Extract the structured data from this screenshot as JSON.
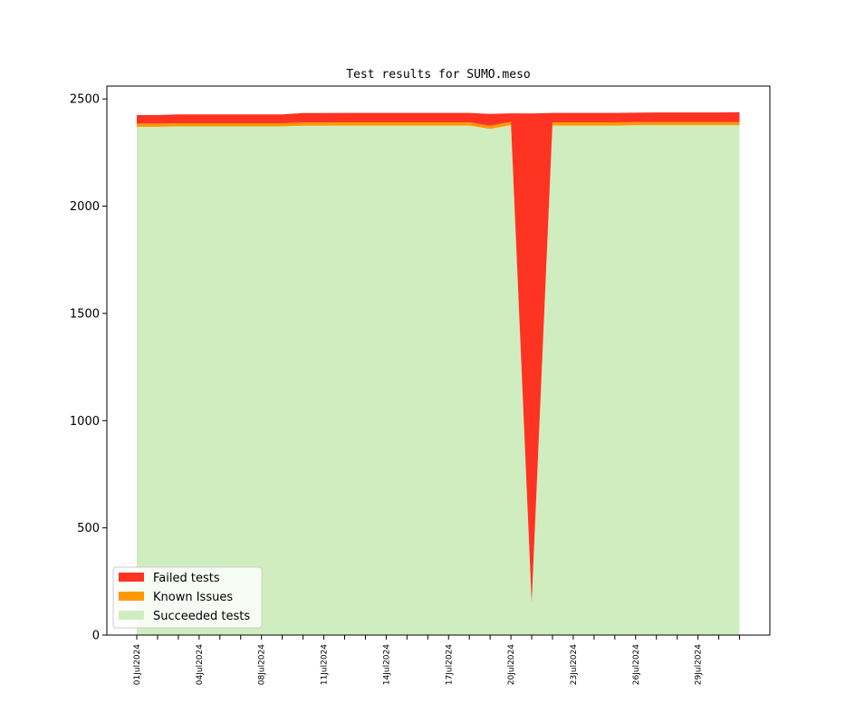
{
  "chart_data": {
    "type": "area",
    "stacked": true,
    "title": "Test results for SUMO.meso",
    "xlabel": "",
    "ylabel": "",
    "ylim": [
      0,
      2560
    ],
    "yticks": [
      0,
      500,
      1000,
      1500,
      2000,
      2500
    ],
    "xtick_labels": [
      "01Jul2024",
      "04Jul2024",
      "08Jul2024",
      "11Jul2024",
      "14Jul2024",
      "17Jul2024",
      "20Jul2024",
      "23Jul2024",
      "26Jul2024",
      "29Jul2024"
    ],
    "x": [
      "01Jul2024",
      "02Jul2024",
      "03Jul2024",
      "04Jul2024",
      "05Jul2024",
      "06Jul2024",
      "07Jul2024",
      "08Jul2024",
      "09Jul2024",
      "10Jul2024",
      "11Jul2024",
      "12Jul2024",
      "13Jul2024",
      "14Jul2024",
      "15Jul2024",
      "16Jul2024",
      "17Jul2024",
      "18Jul2024",
      "19Jul2024",
      "20Jul2024",
      "21Jul2024",
      "22Jul2024",
      "23Jul2024",
      "24Jul2024",
      "25Jul2024",
      "26Jul2024",
      "27Jul2024",
      "28Jul2024",
      "29Jul2024",
      "30Jul2024"
    ],
    "series": [
      {
        "name": "Succeeded tests",
        "color": "#d0edc0",
        "values": [
          2370,
          2370,
          2372,
          2372,
          2372,
          2372,
          2372,
          2372,
          2375,
          2375,
          2376,
          2376,
          2376,
          2376,
          2376,
          2376,
          2376,
          2360,
          2378,
          150,
          2376,
          2376,
          2376,
          2376,
          2377,
          2377,
          2377,
          2377,
          2377,
          2377
        ]
      },
      {
        "name": "Known Issues",
        "color": "#ff9900",
        "values": [
          15,
          15,
          15,
          15,
          15,
          15,
          15,
          15,
          15,
          15,
          15,
          15,
          15,
          15,
          15,
          15,
          15,
          15,
          15,
          0,
          15,
          15,
          15,
          15,
          15,
          15,
          15,
          15,
          15,
          15
        ]
      },
      {
        "name": "Failed tests",
        "color": "#ff3322",
        "values": [
          40,
          40,
          41,
          41,
          41,
          41,
          41,
          41,
          44,
          44,
          44,
          44,
          44,
          44,
          44,
          44,
          44,
          55,
          40,
          2282,
          44,
          44,
          44,
          44,
          44,
          45,
          45,
          45,
          45,
          46
        ]
      }
    ],
    "legend": {
      "position": "lower-left",
      "order": [
        "Failed tests",
        "Known Issues",
        "Succeeded tests"
      ]
    }
  }
}
